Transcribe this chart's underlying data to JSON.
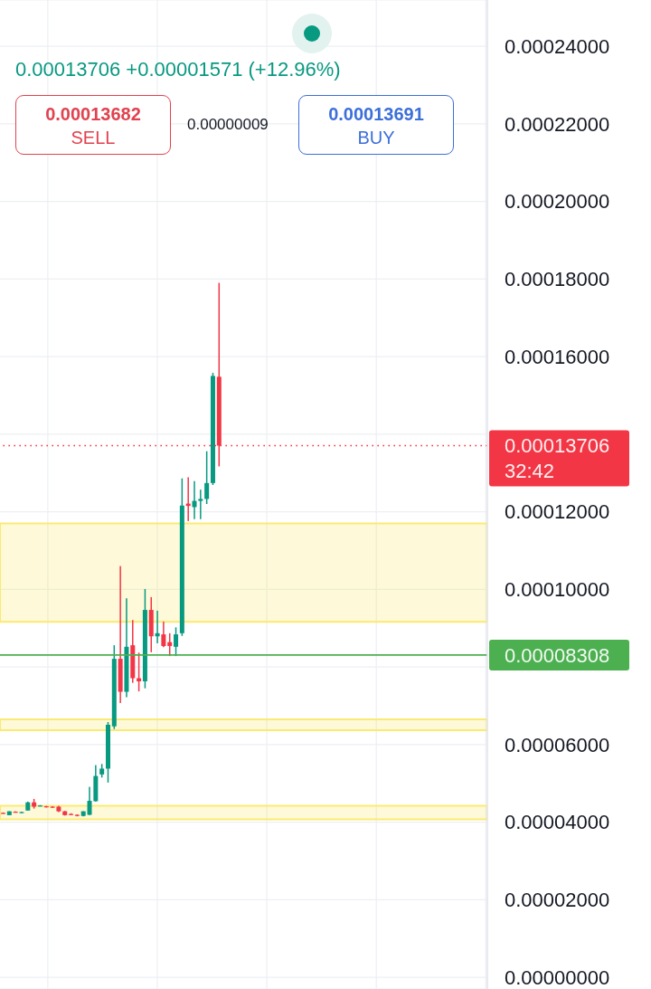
{
  "chart_data": {
    "type": "candlestick",
    "subtitle": "0.00013706 +0.00001571 (+12.96%)",
    "annotations": [
      "0.00013682",
      "SELL",
      "0.00000009",
      "0.00013691",
      "BUY"
    ],
    "categories": [
      null,
      null,
      null,
      null,
      null,
      null,
      null,
      null,
      null,
      null,
      null,
      null,
      null,
      null,
      null,
      null,
      null,
      null,
      null,
      null,
      null,
      null,
      null,
      null,
      null,
      null,
      null,
      null,
      null,
      null,
      null,
      null,
      null,
      null,
      null,
      null,
      null,
      null,
      null,
      null,
      null,
      null,
      null,
      null,
      null,
      null,
      null,
      null,
      null,
      null,
      null,
      null,
      null,
      null,
      null,
      null,
      null,
      null,
      null,
      null,
      null,
      null,
      null,
      null,
      null,
      null,
      null,
      null,
      null,
      null,
      null,
      null,
      null,
      null,
      null,
      null,
      null,
      null,
      null
    ],
    "ohlc": [
      [
        4.24e-05,
        4.25e-05,
        4.22e-05,
        4.23e-05
      ],
      [
        4.18e-05,
        4.28e-05,
        4.18e-05,
        4.28e-05
      ],
      [
        4.27e-05,
        4.28e-05,
        4.25e-05,
        4.26e-05
      ],
      [
        4.25e-05,
        4.27e-05,
        4.24e-05,
        4.26e-05
      ],
      [
        4.3e-05,
        4.53e-05,
        4.3e-05,
        4.51e-05
      ],
      [
        4.51e-05,
        4.6e-05,
        4.35e-05,
        4.4e-05
      ],
      [
        4.42e-05,
        4.44e-05,
        4.41e-05,
        4.43e-05
      ],
      [
        4.41e-05,
        4.42e-05,
        4.38e-05,
        4.4e-05
      ],
      [
        4.4e-05,
        4.41e-05,
        4.37e-05,
        4.39e-05
      ],
      [
        4.4e-05,
        4.42e-05,
        4.26e-05,
        4.28e-05
      ],
      [
        4.28e-05,
        4.29e-05,
        4.17e-05,
        4.18e-05
      ],
      [
        4.21e-05,
        4.23e-05,
        4.19e-05,
        4.2e-05
      ],
      [
        4.19e-05,
        4.2e-05,
        4.15e-05,
        4.17e-05
      ],
      [
        4.16e-05,
        4.28e-05,
        4.15e-05,
        4.28e-05
      ],
      [
        4.19e-05,
        4.91e-05,
        4.18e-05,
        4.55e-05
      ],
      [
        4.54e-05,
        5.47e-05,
        4.53e-05,
        5.19e-05
      ],
      [
        5.23e-05,
        5.5e-05,
        5.15e-05,
        5.38e-05
      ],
      [
        5.38e-05,
        6.58e-05,
        5.02e-05,
        6.51e-05
      ],
      [
        6.47e-05,
        8.56e-05,
        6.4e-05,
        8.21e-05
      ],
      [
        8.21e-05,
        0.000106,
        7.07e-05,
        7.36e-05
      ],
      [
        7.36e-05,
        9.77e-05,
        7.22e-05,
        8.52e-05
      ],
      [
        8.56e-05,
        9.21e-05,
        7.59e-05,
        7.71e-05
      ],
      [
        7.71e-05,
        8.37e-05,
        7.37e-05,
        7.63e-05
      ],
      [
        7.63e-05,
        0.0001001,
        7.45e-05,
        9.47e-05
      ],
      [
        9.47e-05,
        9.8e-05,
        8.38e-05,
        8.79e-05
      ],
      [
        8.79e-05,
        9.45e-05,
        8.61e-05,
        8.87e-05
      ],
      [
        8.84e-05,
        9.17e-05,
        8.51e-05,
        8.54e-05
      ],
      [
        8.64e-05,
        8.87e-05,
        8.28e-05,
        8.54e-05
      ],
      [
        8.52e-05,
        9.02e-05,
        8.28e-05,
        8.84e-05
      ],
      [
        8.87e-05,
        0.0001286,
        8.8e-05,
        0.0001216
      ],
      [
        0.0001221,
        0.0001289,
        0.0001176,
        0.0001215
      ],
      [
        0.0001212,
        0.0001279,
        0.0001181,
        0.0001228
      ],
      [
        0.0001228,
        0.0001257,
        0.0001181,
        0.0001233
      ],
      [
        0.0001233,
        0.0001356,
        0.000122,
        0.0001274
      ],
      [
        0.0001274,
        0.0001558,
        0.0001269,
        0.000155
      ],
      [
        0.0001548,
        0.000179,
        0.0001317,
        0.00013706
      ],
      null,
      null,
      null,
      null,
      null,
      null,
      null,
      null,
      null,
      null,
      null,
      null,
      null,
      null,
      null,
      null,
      null,
      null,
      null,
      null,
      null,
      null,
      null,
      null,
      null,
      null,
      null,
      null,
      null,
      null,
      null,
      null,
      null,
      null,
      null,
      null,
      null,
      null,
      null,
      null,
      null,
      null,
      null
    ],
    "colors": [
      "#f23645",
      "#089981",
      "#f23645",
      "#089981",
      "#089981",
      "#f23645",
      "#089981",
      "#f23645",
      "#f23645",
      "#f23645",
      "#f23645",
      "#f23645",
      "#f23645",
      "#089981",
      "#089981",
      "#089981",
      "#089981",
      "#089981",
      "#089981",
      "#f23645",
      "#089981",
      "#f23645",
      "#f23645",
      "#089981",
      "#f23645",
      "#089981",
      "#f23645",
      "#f23645",
      "#089981",
      "#089981",
      "#f23645",
      "#089981",
      "#089981",
      "#089981",
      "#089981",
      "#f23645",
      null,
      null,
      null,
      null,
      null,
      null,
      null,
      null,
      null,
      null,
      null,
      null,
      null,
      null,
      null,
      null,
      null,
      null,
      null,
      null,
      null,
      null,
      null,
      null,
      null,
      null,
      null,
      null,
      null,
      null,
      null,
      null,
      null,
      null,
      null,
      null,
      null,
      null,
      null,
      null,
      null,
      null,
      null
    ],
    "ylim": [
      -3e-06,
      0.0002519
    ],
    "yticks": [
      {
        "value": 0,
        "label": "0.00000000"
      },
      {
        "value": 2e-05,
        "label": "0.00002000"
      },
      {
        "value": 4e-05,
        "label": "0.00004000"
      },
      {
        "value": 6e-05,
        "label": "0.00006000"
      },
      {
        "value": 8e-05,
        "label": null
      },
      {
        "value": 0.0001,
        "label": "0.00010000"
      },
      {
        "value": 0.00012,
        "label": "0.00012000"
      },
      {
        "value": 0.00014,
        "label": null
      },
      {
        "value": 0.00016,
        "label": "0.00016000"
      },
      {
        "value": 0.00018,
        "label": "0.00018000"
      },
      {
        "value": 0.0002,
        "label": "0.00020000"
      },
      {
        "value": 0.00022,
        "label": "0.00022000"
      },
      {
        "value": 0.00024,
        "label": "0.00024000"
      }
    ],
    "bands": [
      {
        "axis": "y",
        "from": 9.16e-05,
        "to": 0.000117,
        "color": "#f9e866"
      },
      {
        "axis": "y",
        "from": 6.37e-05,
        "to": 6.65e-05,
        "color": "#f9e866"
      },
      {
        "axis": "y",
        "from": 4.07e-05,
        "to": 4.42e-05,
        "color": "#f9e866"
      }
    ],
    "ref_lines": [
      {
        "axis": "y",
        "value": 0.00013706,
        "label": "0.00013706\n32:42",
        "color": "#f23645",
        "line_style": "dotted"
      },
      {
        "axis": "y",
        "value": 8.308e-05,
        "label": "0.00008308",
        "color": "#4caf50",
        "line_style": "solid"
      }
    ],
    "grid": true,
    "tick_labels": "y"
  }
}
